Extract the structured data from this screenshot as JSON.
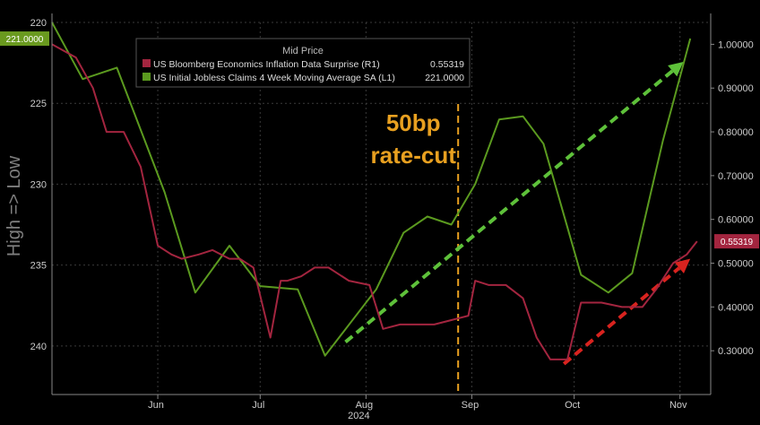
{
  "chart_data": {
    "type": "line",
    "legend": {
      "title": "Mid Price",
      "placement": "top-left",
      "entries": [
        {
          "label": "US Bloomberg Economics Inflation Data Surprise (R1)",
          "value": "0.55319",
          "color": "#a3253f"
        },
        {
          "label": "US Initial Jobless Claims 4 Week Moving Average SA (L1)",
          "value": "221.0000",
          "color": "#5b9a1f"
        }
      ]
    },
    "left_axis": {
      "label": "High => Low",
      "inverted": true,
      "range": [
        220,
        243
      ],
      "ticks": [
        "220",
        "225",
        "230",
        "235",
        "240"
      ],
      "tick_values": [
        220,
        225,
        230,
        235,
        240
      ],
      "last_value_badge": "221.0000",
      "badge_color": "#6a9a1f"
    },
    "right_axis": {
      "range": [
        0.2,
        1.05
      ],
      "ticks": [
        "1.00000",
        "0.90000",
        "0.80000",
        "0.70000",
        "0.60000",
        "0.50000",
        "0.40000",
        "0.30000"
      ],
      "tick_values": [
        1.0,
        0.9,
        0.8,
        0.7,
        0.6,
        0.5,
        0.4,
        0.3
      ],
      "last_value_badge": "0.55319",
      "badge_color": "#a3253f"
    },
    "x_axis": {
      "month_labels": [
        "Jun",
        "Jul",
        "Aug",
        "Sep",
        "Oct",
        "Nov"
      ],
      "month_dates": [
        "2024-06-01",
        "2024-07-01",
        "2024-08-01",
        "2024-09-01",
        "2024-10-01",
        "2024-11-01"
      ],
      "year_label": "2024",
      "start": "2024-05-01",
      "end": "2024-11-10"
    },
    "grid": true,
    "series": [
      {
        "name": "US Initial Jobless Claims 4 Week Moving Average SA",
        "axis": "left",
        "color": "#5b9a1f",
        "x": [
          "2024-05-01",
          "2024-05-10",
          "2024-05-20",
          "2024-06-03",
          "2024-06-12",
          "2024-06-22",
          "2024-07-01",
          "2024-07-12",
          "2024-07-20",
          "2024-08-04",
          "2024-08-12",
          "2024-08-19",
          "2024-08-26",
          "2024-09-02",
          "2024-09-09",
          "2024-09-16",
          "2024-09-22",
          "2024-10-03",
          "2024-10-11",
          "2024-10-18",
          "2024-10-27",
          "2024-11-04"
        ],
        "y": [
          220.0,
          223.5,
          222.8,
          230.5,
          236.7,
          233.8,
          236.3,
          236.5,
          240.6,
          236.5,
          233.0,
          232.0,
          232.5,
          230.0,
          226.0,
          225.8,
          227.5,
          235.6,
          236.7,
          235.5,
          227.3,
          221.0
        ]
      },
      {
        "name": "US Bloomberg Economics Inflation Data Surprise",
        "axis": "right",
        "color": "#a3253f",
        "x": [
          "2024-05-01",
          "2024-05-08",
          "2024-05-13",
          "2024-05-17",
          "2024-05-22",
          "2024-05-27",
          "2024-06-01",
          "2024-06-05",
          "2024-06-08",
          "2024-06-13",
          "2024-06-17",
          "2024-06-22",
          "2024-06-25",
          "2024-06-29",
          "2024-07-04",
          "2024-07-07",
          "2024-07-09",
          "2024-07-13",
          "2024-07-17",
          "2024-07-21",
          "2024-07-23",
          "2024-07-27",
          "2024-08-02",
          "2024-08-06",
          "2024-08-11",
          "2024-08-16",
          "2024-08-21",
          "2024-08-26",
          "2024-08-31",
          "2024-09-02",
          "2024-09-06",
          "2024-09-11",
          "2024-09-16",
          "2024-09-20",
          "2024-09-24",
          "2024-09-29",
          "2024-10-03",
          "2024-10-09",
          "2024-10-15",
          "2024-10-21",
          "2024-10-25",
          "2024-10-30",
          "2024-11-03",
          "2024-11-06"
        ],
        "y": [
          1.0,
          0.97,
          0.9,
          0.8,
          0.8,
          0.72,
          0.54,
          0.52,
          0.51,
          0.52,
          0.53,
          0.51,
          0.51,
          0.49,
          0.33,
          0.46,
          0.46,
          0.47,
          0.49,
          0.49,
          0.48,
          0.46,
          0.45,
          0.35,
          0.36,
          0.36,
          0.36,
          0.37,
          0.38,
          0.46,
          0.45,
          0.45,
          0.42,
          0.33,
          0.28,
          0.28,
          0.41,
          0.41,
          0.4,
          0.4,
          0.44,
          0.5,
          0.52,
          0.55
        ]
      }
    ],
    "annotations": [
      {
        "type": "vline",
        "x": "2024-08-28",
        "color": "#e8a020",
        "style": "dashed"
      },
      {
        "type": "text",
        "lines": [
          "50bp",
          "rate-cut"
        ],
        "color": "#e8a020",
        "anchor_x": "2024-08-28"
      },
      {
        "type": "arrow",
        "color": "#5ec13a",
        "style": "dashed",
        "from": [
          "2024-07-26",
          0.32
        ],
        "to": [
          "2024-11-02",
          0.96
        ]
      },
      {
        "type": "arrow",
        "color": "#d9231f",
        "style": "dashed",
        "from": [
          "2024-09-28",
          0.27
        ],
        "to": [
          "2024-11-04",
          0.51
        ]
      }
    ]
  }
}
